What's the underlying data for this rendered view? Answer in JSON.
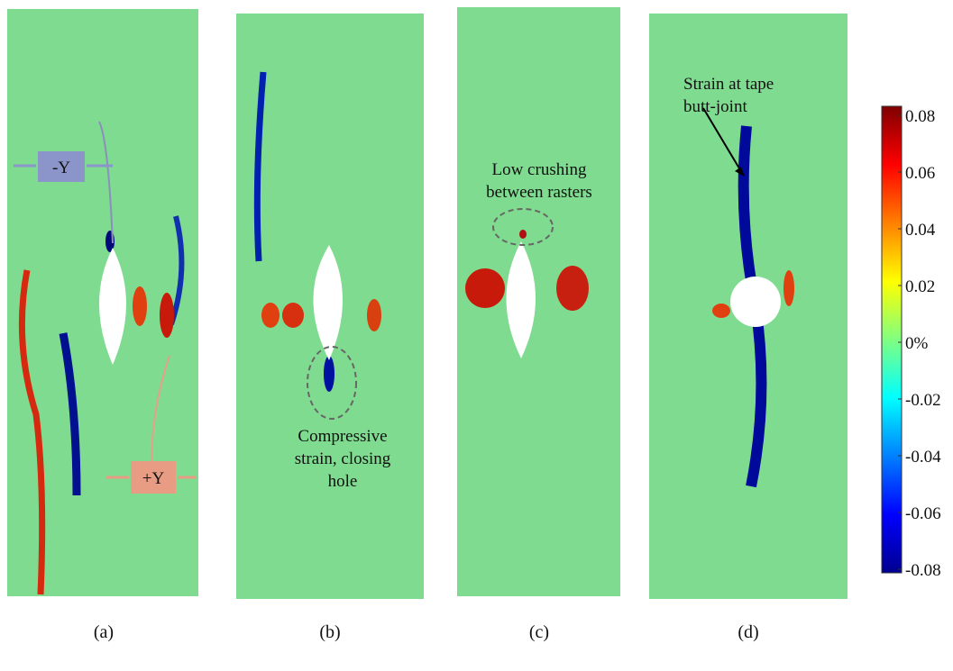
{
  "panels": [
    {
      "label": "(a)"
    },
    {
      "label": "(b)"
    },
    {
      "label": "(c)"
    },
    {
      "label": "(d)"
    }
  ],
  "annotations": {
    "minus_y": "-Y",
    "plus_y": "+Y",
    "compressive": [
      "Compressive",
      "strain, closing",
      "hole"
    ],
    "crushing": [
      "Low crushing",
      "between rasters"
    ],
    "butt_joint": [
      "Strain at tape",
      "butt-joint"
    ]
  },
  "colorbar": {
    "lim": [
      -0.08,
      0.08
    ],
    "ticks": [
      0.08,
      0.06,
      0.04,
      0.02,
      {
        "value": 0,
        "label": "0%"
      },
      -0.02,
      -0.04,
      -0.06,
      -0.08
    ]
  }
}
